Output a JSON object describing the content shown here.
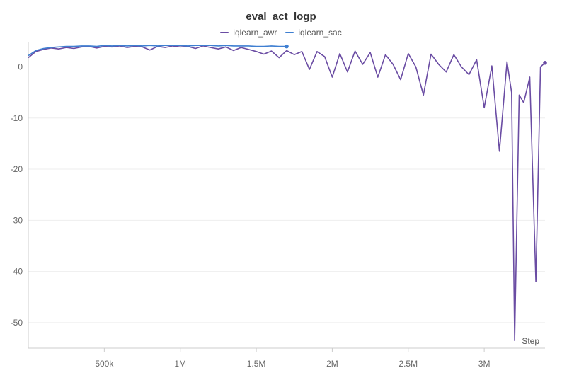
{
  "chart_data": {
    "type": "line",
    "title": "eval_act_logp",
    "xlabel": "Step",
    "ylabel": "",
    "xlim": [
      0,
      3400000
    ],
    "ylim": [
      -55,
      4.5
    ],
    "x_ticks": [
      500000,
      1000000,
      1500000,
      2000000,
      2500000,
      3000000
    ],
    "x_tick_labels": [
      "500k",
      "1M",
      "1.5M",
      "2M",
      "2.5M",
      "3M"
    ],
    "y_ticks": [
      0,
      -10,
      -20,
      -30,
      -40,
      -50
    ],
    "y_tick_labels": [
      "0",
      "-10",
      "-20",
      "-30",
      "-40",
      "-50"
    ],
    "grid": true,
    "legend": "top-center",
    "series": [
      {
        "name": "iqlearn_awr",
        "color": "#6a4ca3",
        "x": [
          0,
          50000,
          100000,
          150000,
          200000,
          250000,
          300000,
          350000,
          400000,
          450000,
          500000,
          550000,
          600000,
          650000,
          700000,
          750000,
          800000,
          850000,
          900000,
          950000,
          1000000,
          1050000,
          1100000,
          1150000,
          1200000,
          1250000,
          1300000,
          1350000,
          1400000,
          1450000,
          1500000,
          1550000,
          1600000,
          1650000,
          1700000,
          1750000,
          1800000,
          1850000,
          1900000,
          1950000,
          2000000,
          2050000,
          2100000,
          2150000,
          2200000,
          2250000,
          2300000,
          2350000,
          2400000,
          2450000,
          2500000,
          2550000,
          2600000,
          2650000,
          2700000,
          2750000,
          2800000,
          2850000,
          2900000,
          2950000,
          3000000,
          3050000,
          3100000,
          3150000,
          3180000,
          3200000,
          3230000,
          3260000,
          3300000,
          3340000,
          3370000,
          3400000
        ],
        "values": [
          1.8,
          3.0,
          3.4,
          3.7,
          3.5,
          3.8,
          3.6,
          3.9,
          4.0,
          3.7,
          4.0,
          3.9,
          4.1,
          3.8,
          4.0,
          3.9,
          3.3,
          4.0,
          3.8,
          4.1,
          3.9,
          4.0,
          3.6,
          4.1,
          3.8,
          3.5,
          3.9,
          3.2,
          3.8,
          3.4,
          3.0,
          2.5,
          3.1,
          1.8,
          3.2,
          2.4,
          3.0,
          -0.5,
          3.0,
          2.0,
          -2.0,
          2.6,
          -1.0,
          3.1,
          0.5,
          2.8,
          -2.0,
          2.4,
          0.5,
          -2.5,
          2.6,
          0.0,
          -5.5,
          2.5,
          0.5,
          -1.0,
          2.4,
          0.0,
          -1.5,
          1.4,
          -8.0,
          0.2,
          -16.5,
          1.0,
          -5.0,
          -53.5,
          -5.5,
          -7.0,
          -2.0,
          -42.0,
          0.0,
          0.8
        ]
      },
      {
        "name": "iqlearn_sac",
        "color": "#3f7fd1",
        "x": [
          0,
          50000,
          100000,
          150000,
          200000,
          250000,
          300000,
          350000,
          400000,
          450000,
          500000,
          550000,
          600000,
          650000,
          700000,
          750000,
          800000,
          850000,
          900000,
          950000,
          1000000,
          1050000,
          1100000,
          1150000,
          1200000,
          1250000,
          1300000,
          1350000,
          1400000,
          1450000,
          1500000,
          1550000,
          1600000,
          1650000,
          1700000
        ],
        "values": [
          2.2,
          3.2,
          3.6,
          3.8,
          3.9,
          4.0,
          4.0,
          4.1,
          4.1,
          4.0,
          4.2,
          4.1,
          4.2,
          4.1,
          4.2,
          4.1,
          4.2,
          4.1,
          4.2,
          4.2,
          4.2,
          4.1,
          4.2,
          4.2,
          4.2,
          4.1,
          4.2,
          4.1,
          4.1,
          4.1,
          4.0,
          4.0,
          4.1,
          4.0,
          4.0
        ]
      }
    ]
  }
}
